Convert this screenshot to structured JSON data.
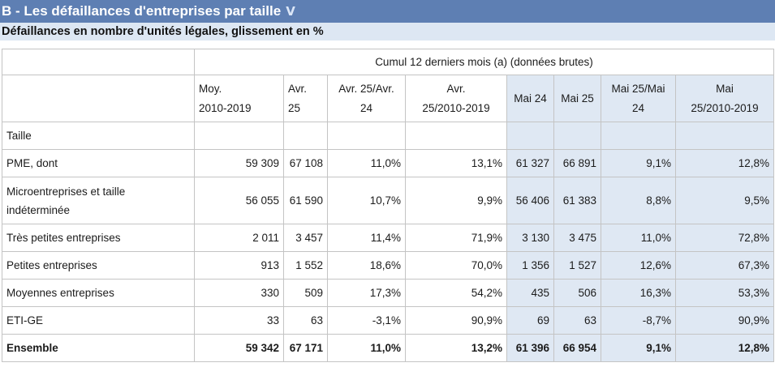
{
  "title": "B - Les défaillances d'entreprises par taille",
  "title_icon": "chart-icon",
  "subtitle": "Défaillances en nombre d'unités légales, glissement en %",
  "group_header": "Cumul 12 derniers mois (a) (données brutes)",
  "columns": [
    {
      "line1": "Moy.",
      "line2": "2010-2019"
    },
    {
      "line1": "Avr.",
      "line2": "25"
    },
    {
      "line1": "Avr. 25/Avr.",
      "line2": "24"
    },
    {
      "line1": "Avr.",
      "line2": "25/2010-2019"
    },
    {
      "line1": "Mai 24",
      "line2": ""
    },
    {
      "line1": "Mai 25",
      "line2": ""
    },
    {
      "line1": "Mai 25/Mai",
      "line2": "24"
    },
    {
      "line1": "Mai",
      "line2": "25/2010-2019"
    }
  ],
  "section_label": "Taille",
  "rows": [
    {
      "label": "PME, dont",
      "values": [
        "59 309",
        "67 108",
        "11,0%",
        "13,1%",
        "61 327",
        "66 891",
        "9,1%",
        "12,8%"
      ]
    },
    {
      "label_line1": "Microentreprises et taille",
      "label_line2": "indéterminée",
      "values": [
        "56 055",
        "61 590",
        "10,7%",
        "9,9%",
        "56 406",
        "61 383",
        "8,8%",
        "9,5%"
      ]
    },
    {
      "label": "Très petites entreprises",
      "values": [
        "2 011",
        "3 457",
        "11,4%",
        "71,9%",
        "3 130",
        "3 475",
        "11,0%",
        "72,8%"
      ]
    },
    {
      "label": "Petites entreprises",
      "values": [
        "913",
        "1 552",
        "18,6%",
        "70,0%",
        "1 356",
        "1 527",
        "12,6%",
        "67,3%"
      ]
    },
    {
      "label": "Moyennes entreprises",
      "values": [
        "330",
        "509",
        "17,3%",
        "54,2%",
        "435",
        "506",
        "16,3%",
        "53,3%"
      ]
    },
    {
      "label": "ETI-GE",
      "values": [
        "33",
        "63",
        "-3,1%",
        "90,9%",
        "69",
        "63",
        "-8,7%",
        "90,9%"
      ]
    },
    {
      "label": "Ensemble",
      "values": [
        "59 342",
        "67 171",
        "11,0%",
        "13,2%",
        "61 396",
        "66 954",
        "9,1%",
        "12,8%"
      ]
    }
  ],
  "colors": {
    "title_bg": "#5e7fb3",
    "subtitle_bg": "#dde7f3",
    "highlight_bg": "#dfe8f3"
  }
}
